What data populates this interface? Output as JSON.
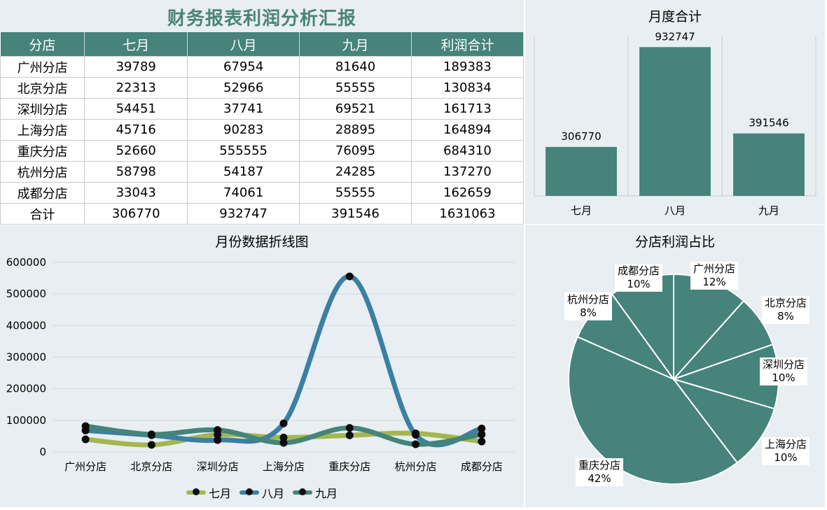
{
  "title": "财务报表利润分析汇报",
  "table": {
    "headers": [
      "分店",
      "七月",
      "八月",
      "九月",
      "利润合计"
    ],
    "rows": [
      [
        "广州分店",
        "39789",
        "67954",
        "81640",
        "189383"
      ],
      [
        "北京分店",
        "22313",
        "52966",
        "55555",
        "130834"
      ],
      [
        "深圳分店",
        "54451",
        "37741",
        "69521",
        "161713"
      ],
      [
        "上海分店",
        "45716",
        "90283",
        "28895",
        "164894"
      ],
      [
        "重庆分店",
        "52660",
        "555555",
        "76095",
        "684310"
      ],
      [
        "杭州分店",
        "58798",
        "54187",
        "24285",
        "137270"
      ],
      [
        "成都分店",
        "33043",
        "74061",
        "55555",
        "162659"
      ],
      [
        "合计",
        "306770",
        "932747",
        "391546",
        "1631063"
      ]
    ]
  },
  "colors": {
    "accent": "#45837b",
    "title": "#4a8472",
    "panel": "#e8eef2",
    "july": "#a4b650",
    "august": "#3b7fa3",
    "september": "#44847a"
  },
  "chart_data": [
    {
      "type": "bar",
      "title": "月度合计",
      "categories": [
        "七月",
        "八月",
        "九月"
      ],
      "values": [
        306770,
        932747,
        391546
      ],
      "ylim": [
        0,
        1000000
      ],
      "data_labels": true,
      "color": "#45837b"
    },
    {
      "type": "line",
      "title": "月份数据折线图",
      "smooth": true,
      "categories": [
        "广州分店",
        "北京分店",
        "深圳分店",
        "上海分店",
        "重庆分店",
        "杭州分店",
        "成都分店"
      ],
      "series": [
        {
          "name": "七月",
          "values": [
            39789,
            22313,
            54451,
            45716,
            52660,
            58798,
            33043
          ],
          "color": "#a4b650"
        },
        {
          "name": "八月",
          "values": [
            67954,
            52966,
            37741,
            90283,
            555555,
            54187,
            74061
          ],
          "color": "#3b7fa3"
        },
        {
          "name": "九月",
          "values": [
            81640,
            55555,
            69521,
            28895,
            76095,
            24285,
            55555
          ],
          "color": "#44847a"
        }
      ],
      "ylim": [
        0,
        600000
      ],
      "yticks": [
        "0",
        "100000",
        "200000",
        "300000",
        "400000",
        "500000",
        "600000"
      ],
      "grid": true,
      "legend": "bottom"
    },
    {
      "type": "pie",
      "title": "分店利润占比",
      "labels": [
        "广州分店",
        "北京分店",
        "深圳分店",
        "上海分店",
        "重庆分店",
        "杭州分店",
        "成都分店"
      ],
      "values": [
        189383,
        130834,
        161713,
        164894,
        684310,
        137270,
        162659
      ],
      "percent_labels": [
        "12%",
        "8%",
        "10%",
        "10%",
        "42%",
        "8%",
        "10%"
      ],
      "color": "#45837b"
    }
  ]
}
